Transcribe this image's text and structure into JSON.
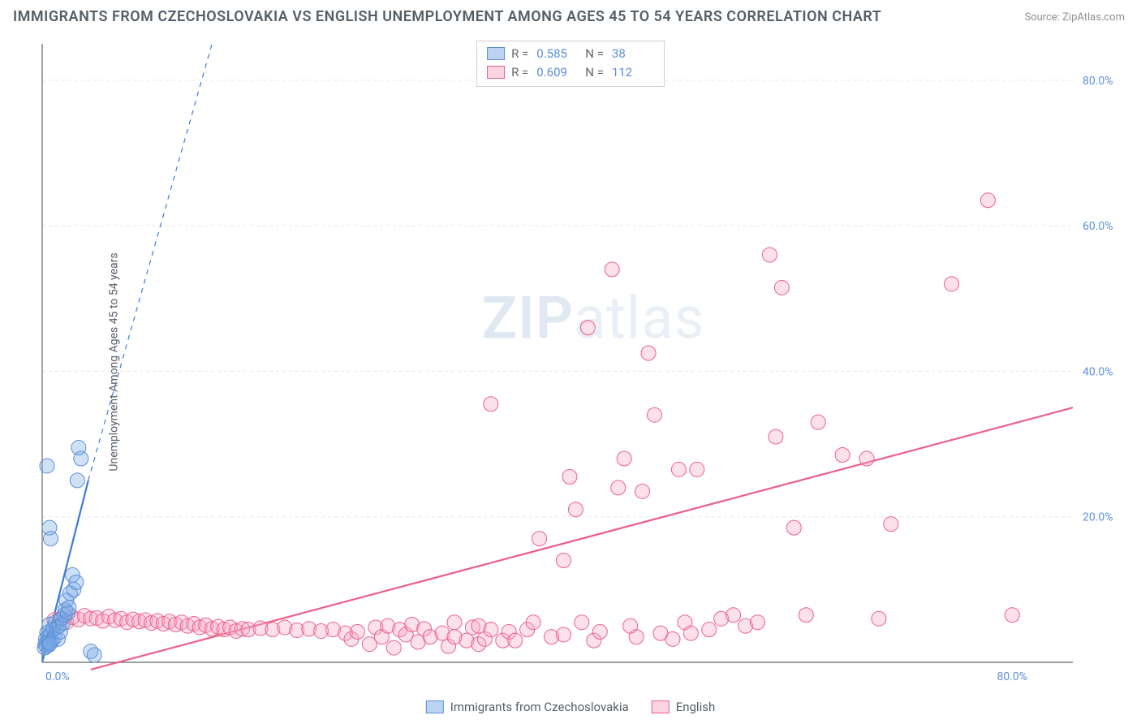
{
  "title": "IMMIGRANTS FROM CZECHOSLOVAKIA VS ENGLISH UNEMPLOYMENT AMONG AGES 45 TO 54 YEARS CORRELATION CHART",
  "source_prefix": "Source: ",
  "source_name": "ZipAtlas.com",
  "ylabel": "Unemployment Among Ages 45 to 54 years",
  "watermark_a": "ZIP",
  "watermark_b": "atlas",
  "chart": {
    "type": "scatter",
    "x_range": [
      0,
      85
    ],
    "y_range": [
      0,
      85
    ],
    "x_ticks": [
      0,
      80
    ],
    "y_ticks": [
      20,
      40,
      60,
      80
    ],
    "tick_suffix": "%",
    "tick_decimals": 1,
    "grid_color": "#e6e6e6",
    "axis_color": "#666666",
    "background_color": "#ffffff",
    "tick_label_color": "#5b8fd6",
    "marker_radius": 9,
    "series": [
      {
        "id": "czech",
        "label": "Immigrants from Czechoslovakia",
        "color_fill": "rgba(120,170,230,0.35)",
        "color_stroke": "#5b8fd6",
        "R": "0.585",
        "N": "38",
        "trend": {
          "x1": 0,
          "y1": 0,
          "x2": 3.8,
          "y2": 25,
          "extend_to_x": 14,
          "extend_to_y": 85,
          "solid_color": "#3d7bd9",
          "dash_color": "#3d7bd9"
        },
        "points": [
          [
            0.3,
            3.2
          ],
          [
            0.4,
            4.1
          ],
          [
            0.5,
            3.5
          ],
          [
            0.6,
            5.2
          ],
          [
            0.7,
            4.0
          ],
          [
            0.8,
            3.0
          ],
          [
            0.9,
            4.6
          ],
          [
            1.0,
            3.4
          ],
          [
            1.1,
            5.5
          ],
          [
            1.2,
            4.8
          ],
          [
            1.3,
            3.2
          ],
          [
            1.4,
            5.0
          ],
          [
            1.5,
            4.2
          ],
          [
            1.6,
            6.0
          ],
          [
            1.7,
            5.4
          ],
          [
            1.8,
            6.5
          ],
          [
            1.9,
            7.2
          ],
          [
            2.0,
            8.5
          ],
          [
            2.1,
            6.8
          ],
          [
            2.2,
            7.5
          ],
          [
            2.3,
            9.5
          ],
          [
            2.5,
            12.0
          ],
          [
            2.6,
            10.0
          ],
          [
            2.8,
            11.0
          ],
          [
            0.6,
            18.5
          ],
          [
            0.7,
            17.0
          ],
          [
            2.9,
            25.0
          ],
          [
            3.2,
            28.0
          ],
          [
            3.0,
            29.5
          ],
          [
            0.4,
            27.0
          ],
          [
            4.0,
            1.5
          ],
          [
            4.3,
            1.0
          ],
          [
            0.2,
            2.0
          ],
          [
            0.25,
            2.5
          ],
          [
            0.35,
            2.2
          ],
          [
            0.45,
            2.8
          ],
          [
            0.55,
            2.4
          ],
          [
            0.65,
            2.6
          ]
        ]
      },
      {
        "id": "english",
        "label": "English",
        "color_fill": "rgba(245,170,195,0.35)",
        "color_stroke": "#ed5f8a",
        "R": "0.609",
        "N": "112",
        "trend": {
          "x1": 4,
          "y1": -1,
          "x2": 85,
          "y2": 35,
          "color": "#ed5f8a"
        },
        "points": [
          [
            1.0,
            5.8
          ],
          [
            1.5,
            6.0
          ],
          [
            2.0,
            5.5
          ],
          [
            2.5,
            6.2
          ],
          [
            3.0,
            5.9
          ],
          [
            3.5,
            6.4
          ],
          [
            4.0,
            6.0
          ],
          [
            4.5,
            6.1
          ],
          [
            5.0,
            5.7
          ],
          [
            5.5,
            6.3
          ],
          [
            6.0,
            5.8
          ],
          [
            6.5,
            6.0
          ],
          [
            7.0,
            5.5
          ],
          [
            7.5,
            5.9
          ],
          [
            8.0,
            5.6
          ],
          [
            8.5,
            5.8
          ],
          [
            9.0,
            5.4
          ],
          [
            9.5,
            5.7
          ],
          [
            10.0,
            5.3
          ],
          [
            10.5,
            5.6
          ],
          [
            11.0,
            5.2
          ],
          [
            11.5,
            5.5
          ],
          [
            12.0,
            5.0
          ],
          [
            12.5,
            5.3
          ],
          [
            13.0,
            4.8
          ],
          [
            13.5,
            5.1
          ],
          [
            14.0,
            4.6
          ],
          [
            14.5,
            4.9
          ],
          [
            15.0,
            4.5
          ],
          [
            15.5,
            4.8
          ],
          [
            16.0,
            4.3
          ],
          [
            16.5,
            4.6
          ],
          [
            17.0,
            4.5
          ],
          [
            18.0,
            4.7
          ],
          [
            19.0,
            4.5
          ],
          [
            20.0,
            4.8
          ],
          [
            21.0,
            4.4
          ],
          [
            22.0,
            4.6
          ],
          [
            23.0,
            4.3
          ],
          [
            24.0,
            4.5
          ],
          [
            25.0,
            4.0
          ],
          [
            25.5,
            3.2
          ],
          [
            26.0,
            4.2
          ],
          [
            27.0,
            2.5
          ],
          [
            27.5,
            4.8
          ],
          [
            28.0,
            3.5
          ],
          [
            28.5,
            5.0
          ],
          [
            29.0,
            2.0
          ],
          [
            29.5,
            4.5
          ],
          [
            30.0,
            3.8
          ],
          [
            30.5,
            5.2
          ],
          [
            31.0,
            2.8
          ],
          [
            31.5,
            4.6
          ],
          [
            32.0,
            3.5
          ],
          [
            33.0,
            4.0
          ],
          [
            33.5,
            2.2
          ],
          [
            34.0,
            5.5
          ],
          [
            35.0,
            3.0
          ],
          [
            35.5,
            4.8
          ],
          [
            36.0,
            2.5
          ],
          [
            36.5,
            3.2
          ],
          [
            37.0,
            4.5
          ],
          [
            38.0,
            3.0
          ],
          [
            38.5,
            4.2
          ],
          [
            37.0,
            35.5
          ],
          [
            40.0,
            4.5
          ],
          [
            41.0,
            17.0
          ],
          [
            42.0,
            3.5
          ],
          [
            43.0,
            3.8
          ],
          [
            43.0,
            14.0
          ],
          [
            43.5,
            25.5
          ],
          [
            44.0,
            21.0
          ],
          [
            45.0,
            46.0
          ],
          [
            45.5,
            3.0
          ],
          [
            46.0,
            4.2
          ],
          [
            47.0,
            54.0
          ],
          [
            47.5,
            24.0
          ],
          [
            48.0,
            28.0
          ],
          [
            49.0,
            3.5
          ],
          [
            49.5,
            23.5
          ],
          [
            50.0,
            42.5
          ],
          [
            50.5,
            34.0
          ],
          [
            51.0,
            4.0
          ],
          [
            52.0,
            3.2
          ],
          [
            52.5,
            26.5
          ],
          [
            53.0,
            5.5
          ],
          [
            54.0,
            26.5
          ],
          [
            55.0,
            4.5
          ],
          [
            56.0,
            6.0
          ],
          [
            57.0,
            6.5
          ],
          [
            58.0,
            5.0
          ],
          [
            59.0,
            5.5
          ],
          [
            60.0,
            56.0
          ],
          [
            60.5,
            31.0
          ],
          [
            61.0,
            51.5
          ],
          [
            62.0,
            18.5
          ],
          [
            63.0,
            6.5
          ],
          [
            64.0,
            33.0
          ],
          [
            66.0,
            28.5
          ],
          [
            68.0,
            28.0
          ],
          [
            69.0,
            6.0
          ],
          [
            70.0,
            19.0
          ],
          [
            75.0,
            52.0
          ],
          [
            78.0,
            63.5
          ],
          [
            80.0,
            6.5
          ],
          [
            34.0,
            3.5
          ],
          [
            36.0,
            5.0
          ],
          [
            39.0,
            3.0
          ],
          [
            40.5,
            5.5
          ],
          [
            44.5,
            5.5
          ],
          [
            48.5,
            5.0
          ],
          [
            53.5,
            4.0
          ]
        ]
      }
    ]
  },
  "legend_stats_labels": {
    "R": "R =",
    "N": "N ="
  }
}
